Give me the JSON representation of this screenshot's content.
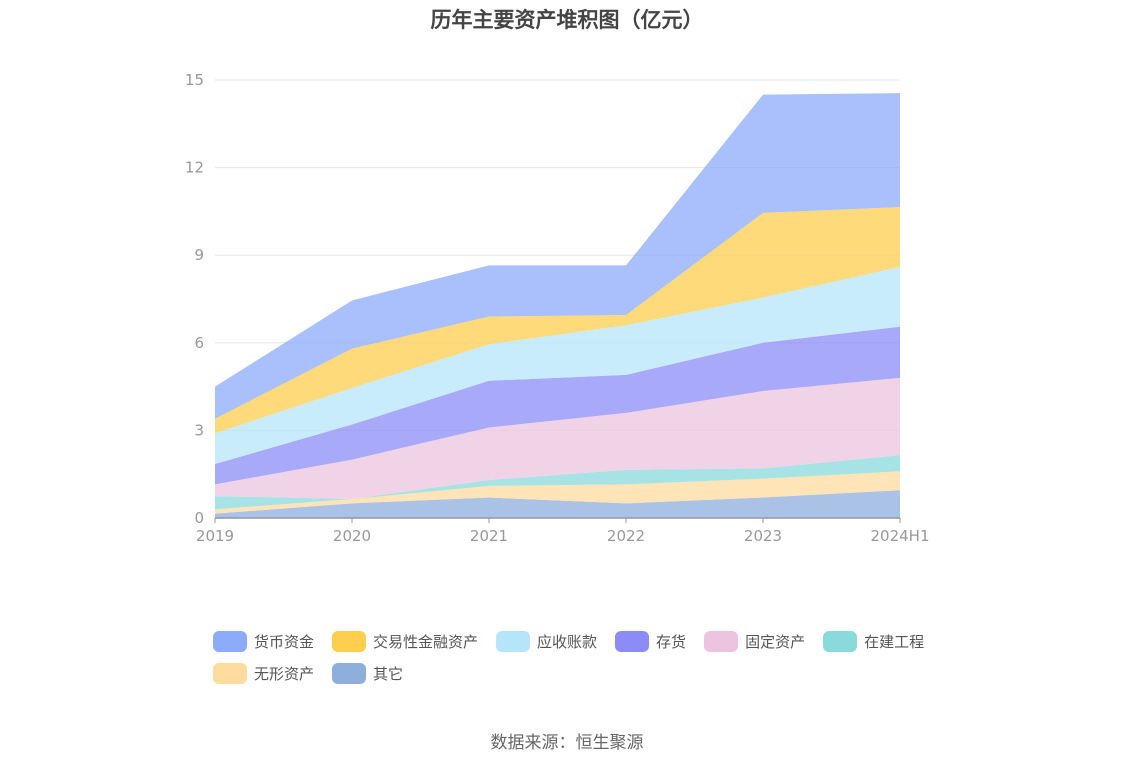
{
  "chart_data": {
    "type": "area",
    "stacked": true,
    "title": "历年主要资产堆积图（亿元）",
    "categories": [
      "2019",
      "2020",
      "2021",
      "2022",
      "2023",
      "2024H1"
    ],
    "ylim": [
      0,
      15
    ],
    "yticks": [
      "0",
      "3",
      "6",
      "9",
      "12",
      "15"
    ],
    "grid": true,
    "legend_position": "bottom",
    "series": [
      {
        "name": "其它",
        "color": "#8eaedc",
        "values": [
          0.15,
          0.5,
          0.7,
          0.5,
          0.7,
          0.95
        ]
      },
      {
        "name": "无形资产",
        "color": "#fedb9e",
        "values": [
          0.15,
          0.15,
          0.4,
          0.65,
          0.65,
          0.65
        ]
      },
      {
        "name": "在建工程",
        "color": "#8ad9db",
        "values": [
          0.45,
          0.0,
          0.2,
          0.5,
          0.35,
          0.55
        ]
      },
      {
        "name": "固定资产",
        "color": "#ecc4e0",
        "values": [
          0.4,
          1.35,
          1.8,
          1.95,
          2.65,
          2.65
        ]
      },
      {
        "name": "存货",
        "color": "#8b8cf5",
        "values": [
          0.7,
          1.2,
          1.6,
          1.3,
          1.65,
          1.75
        ]
      },
      {
        "name": "应收账款",
        "color": "#b6e5fb",
        "values": [
          1.05,
          1.25,
          1.25,
          1.7,
          1.55,
          2.05
        ]
      },
      {
        "name": "交易性金融资产",
        "color": "#fece4f",
        "values": [
          0.5,
          1.35,
          0.95,
          0.35,
          2.9,
          2.05
        ]
      },
      {
        "name": "货币资金",
        "color": "#8cabfb",
        "values": [
          1.1,
          1.65,
          1.75,
          1.7,
          4.05,
          3.9
        ]
      }
    ]
  },
  "legend": [
    {
      "label": "货币资金",
      "color": "#8cabfb"
    },
    {
      "label": "交易性金融资产",
      "color": "#fece4f"
    },
    {
      "label": "应收账款",
      "color": "#b6e5fb"
    },
    {
      "label": "存货",
      "color": "#8b8cf5"
    },
    {
      "label": "固定资产",
      "color": "#ecc4e0"
    },
    {
      "label": "在建工程",
      "color": "#8ad9db"
    },
    {
      "label": "无形资产",
      "color": "#fedb9e"
    },
    {
      "label": "其它",
      "color": "#8eaedc"
    }
  ],
  "source": "数据来源：恒生聚源"
}
